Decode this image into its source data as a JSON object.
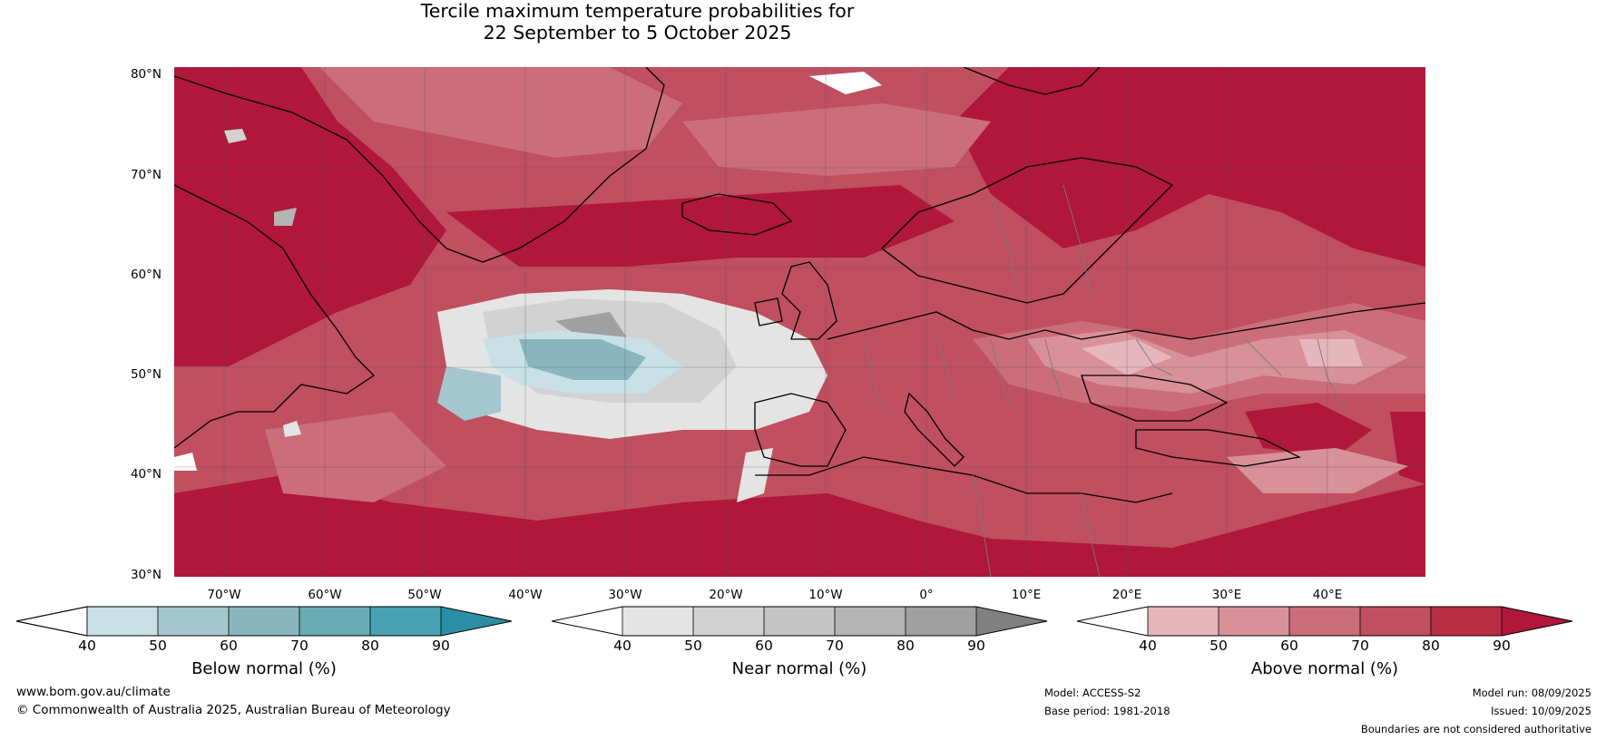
{
  "title": {
    "line1": "Tercile maximum temperature probabilities for",
    "line2": "22 September to 5 October 2025"
  },
  "map": {
    "lat_labels": [
      "80°N",
      "70°N",
      "60°N",
      "50°N",
      "40°N",
      "30°N"
    ],
    "lon_labels": [
      "70°W",
      "60°W",
      "50°W",
      "40°W",
      "30°W",
      "20°W",
      "10°W",
      "0°",
      "10°E",
      "20°E",
      "30°E",
      "40°E"
    ],
    "region": "North Atlantic and Europe, 30°N–80°N",
    "gridlines": true
  },
  "colorbars": [
    {
      "title": "Below normal (%)",
      "ticks": [
        "40",
        "50",
        "60",
        "70",
        "80",
        "90"
      ],
      "colors": [
        "#ffffff",
        "#c8e0e6",
        "#a6c6cd",
        "#8ab5be",
        "#6aaab5",
        "#48a2b2",
        "#2b8fa3"
      ]
    },
    {
      "title": "Near normal (%)",
      "ticks": [
        "40",
        "50",
        "60",
        "70",
        "80",
        "90"
      ],
      "colors": [
        "#ffffff",
        "#e4e4e4",
        "#d2d2d2",
        "#c4c4c4",
        "#b4b4b4",
        "#a0a0a0",
        "#808080"
      ]
    },
    {
      "title": "Above normal (%)",
      "ticks": [
        "40",
        "50",
        "60",
        "70",
        "80",
        "90"
      ],
      "colors": [
        "#ffffff",
        "#e6b6bd",
        "#d99199",
        "#cb6e7a",
        "#c04f5f",
        "#b72d42",
        "#b0173a"
      ]
    }
  ],
  "footer": {
    "website": "www.bom.gov.au/climate",
    "copyright": "© Commonwealth of Australia 2025, Australian Bureau of Meteorology",
    "model": "Model: ACCESS-S2",
    "base_period": "Base period: 1981-2018",
    "model_run": "Model run: 08/09/2025",
    "issued": "Issued: 10/09/2025",
    "disclaimer": "Boundaries are not considered authoritative"
  }
}
